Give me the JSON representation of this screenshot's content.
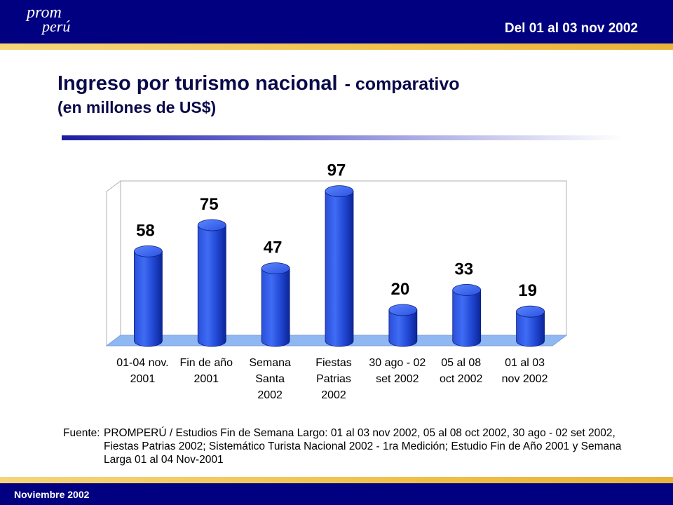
{
  "header": {
    "logo_line1": "prom",
    "logo_line2": "perú",
    "date_range": "Del 01 al 03 nov 2002"
  },
  "title": {
    "main": "Ingreso por turismo nacional",
    "sub": "- comparativo",
    "units": "(en millones de US$)"
  },
  "chart_data": {
    "type": "bar",
    "style": "3d-cylinder",
    "categories": [
      [
        "01-04 nov.",
        "2001"
      ],
      [
        "Fin de año",
        "2001"
      ],
      [
        "Semana",
        "Santa",
        "2002"
      ],
      [
        "Fiestas",
        "Patrias",
        "2002"
      ],
      [
        "30 ago - 02",
        "set 2002"
      ],
      [
        "05 al 08",
        "oct 2002"
      ],
      [
        "01 al 03",
        "nov 2002"
      ]
    ],
    "values": [
      58,
      75,
      47,
      97,
      20,
      33,
      19
    ],
    "data_labels": [
      "58",
      "75",
      "47",
      "97",
      "20",
      "33",
      "19"
    ],
    "bar_color": "#1f4fe0",
    "floor_color": "#8fb7f2",
    "ylim": [
      0,
      100
    ],
    "grid": false,
    "legend": "none"
  },
  "source": {
    "label": "Fuente:",
    "text": "PROMPERÚ / Estudios Fin de Semana Largo: 01 al 03 nov 2002, 05 al 08 oct 2002, 30 ago - 02 set 2002, Fiestas Patrias 2002; Sistemático Turista Nacional 2002 - 1ra Medición; Estudio Fin de Año 2001 y Semana Larga 01 al 04 Nov-2001"
  },
  "footer": {
    "date": "Noviembre 2002"
  }
}
